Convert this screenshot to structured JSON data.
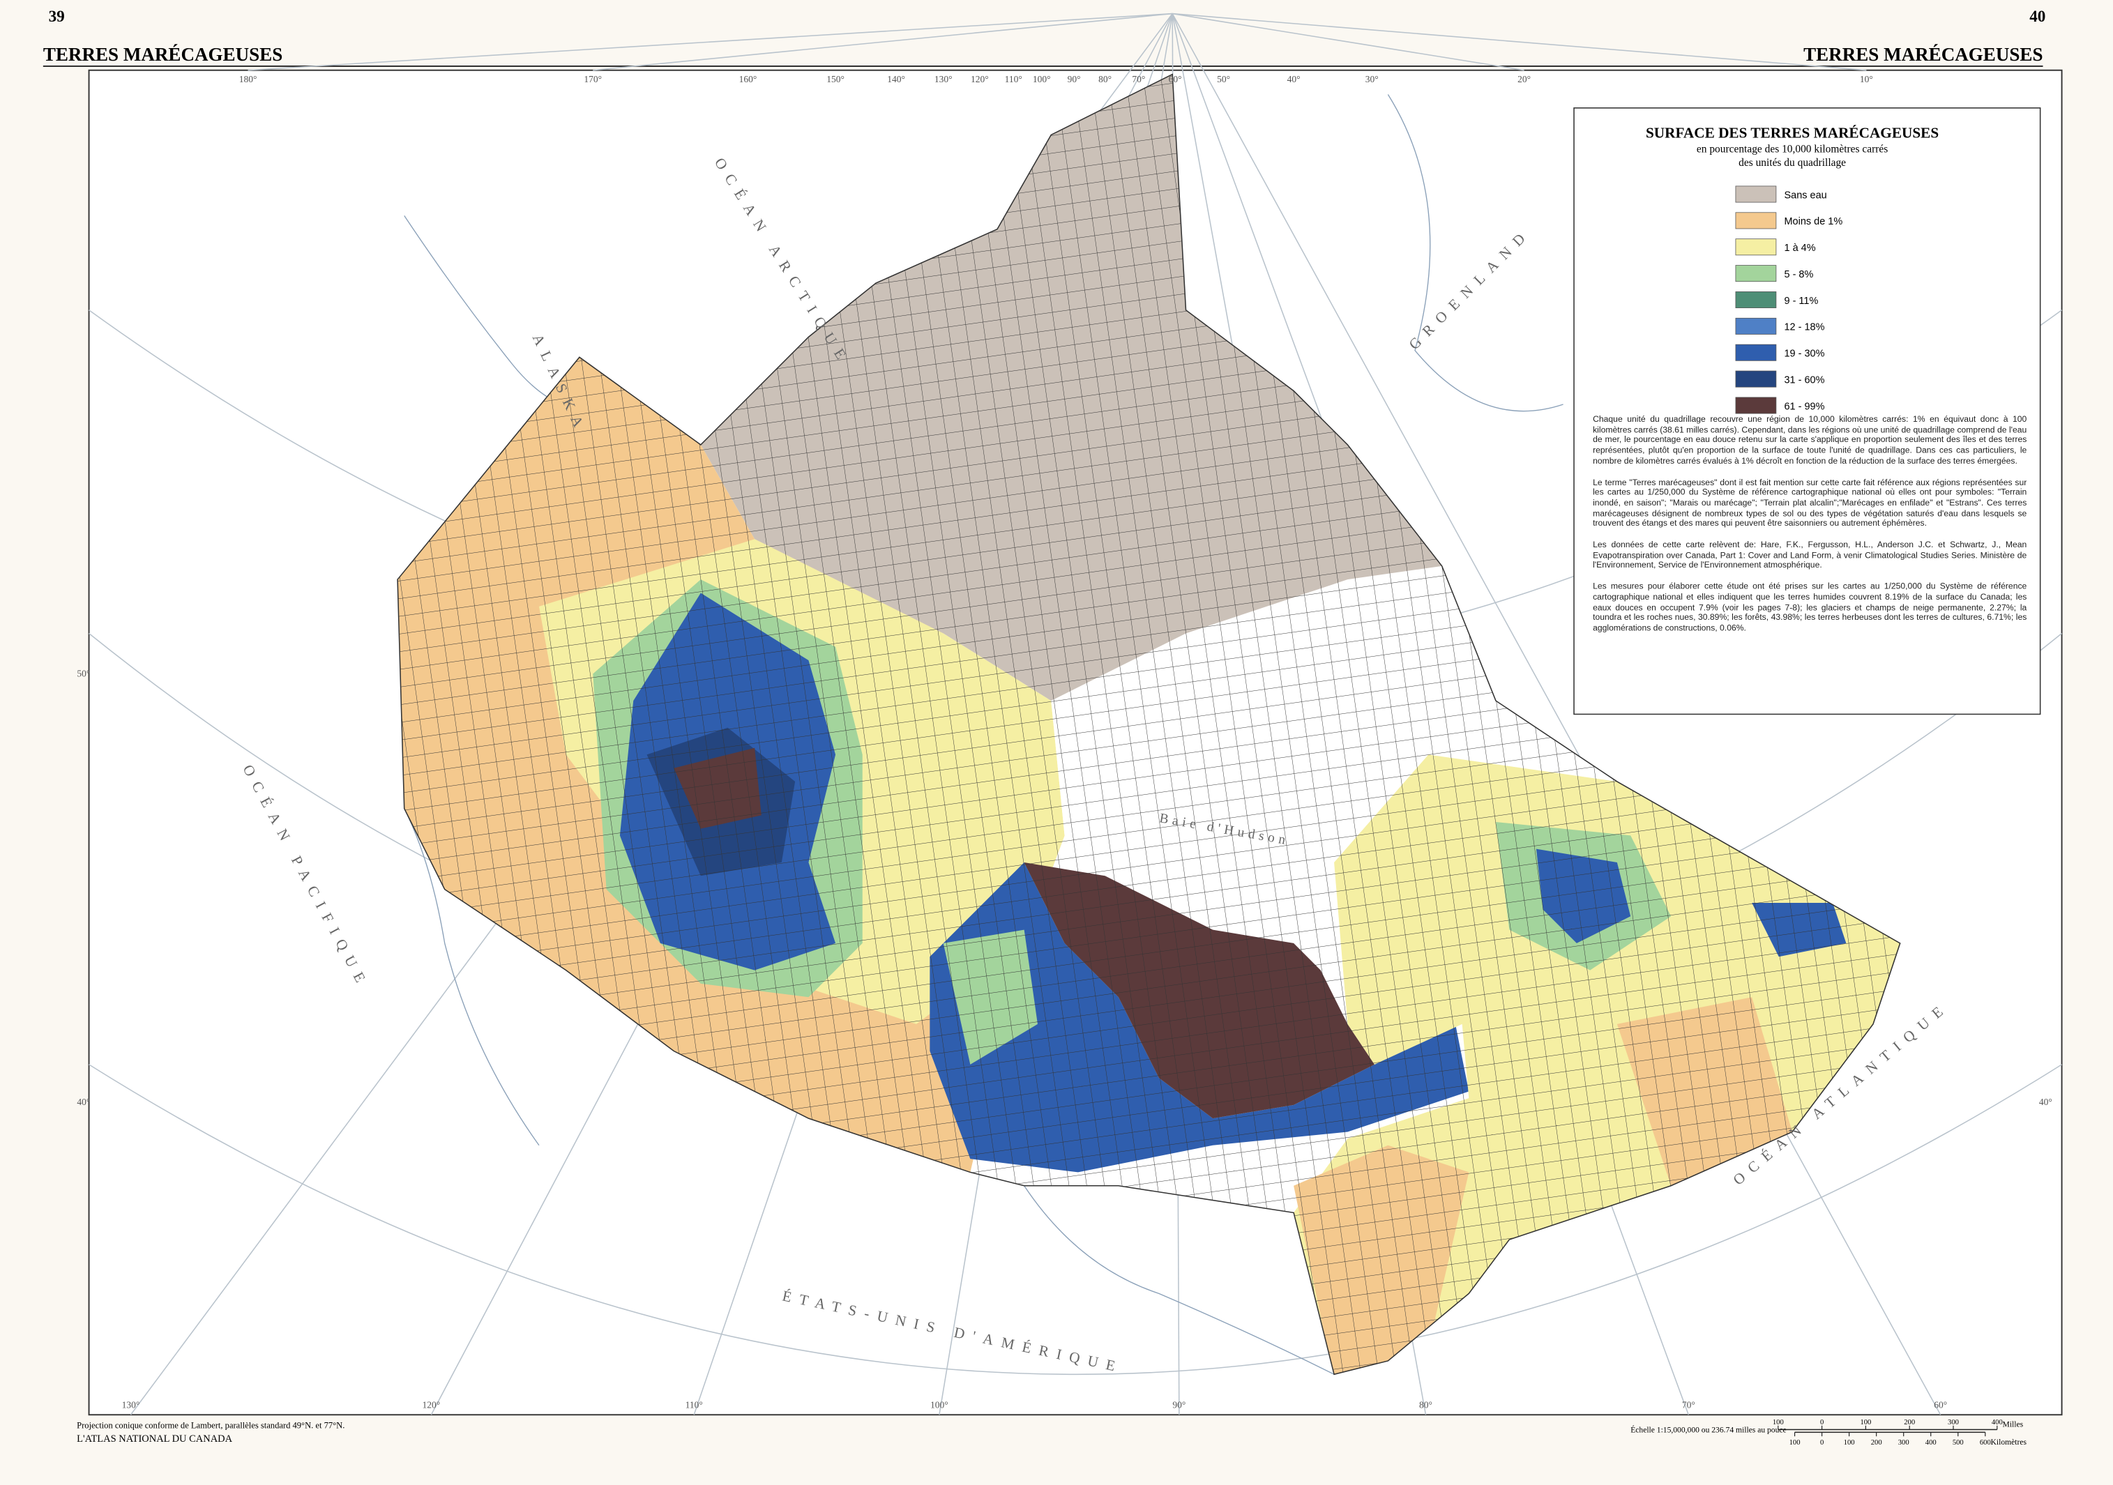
{
  "page": {
    "left_page_number": "39",
    "right_page_number": "40",
    "left_header": "TERRES MARÉCAGEUSES",
    "right_header": "TERRES MARÉCAGEUSES"
  },
  "legend": {
    "title": "SURFACE DES TERRES MARÉCAGEUSES",
    "subtitle_lines": [
      "en pourcentage des 10,000 kilomètres carrés",
      "des unités du quadrillage"
    ],
    "items": [
      {
        "label": "Sans eau",
        "color": "#cbc1b8"
      },
      {
        "label": "Moins de 1%",
        "color": "#f4c98e"
      },
      {
        "label": "1 à 4%",
        "color": "#f5efa3"
      },
      {
        "label": "5 - 8%",
        "color": "#a3d49c"
      },
      {
        "label": "9 - 11%",
        "color": "#4e8e76"
      },
      {
        "label": "12 - 18%",
        "color": "#4f80c6"
      },
      {
        "label": "19 - 30%",
        "color": "#2f5eae"
      },
      {
        "label": "31 - 60%",
        "color": "#24457f"
      },
      {
        "label": "61 - 99%",
        "color": "#5b3a3b"
      }
    ]
  },
  "notes": [
    "Chaque unité du quadrillage recouvre une région de 10,000 kilomètres carrés: 1% en équivaut donc à 100 kilomètres carrés (38.61 milles carrés). Cependant, dans les régions où une unité de quadrillage comprend de l'eau de mer, le pourcentage en eau douce retenu sur la carte s'applique en proportion seulement des îles et des terres représentées, plutôt qu'en proportion de la surface de toute l'unité de quadrillage. Dans ces cas particuliers, le nombre de kilomètres carrés évalués à 1% décroît en fonction de la réduction de la surface des terres émergées.",
    "Le terme \"Terres marécageuses\" dont il est fait mention sur cette carte fait référence aux régions représentées sur les cartes au 1/250,000 du Système de référence cartographique national où elles ont pour symboles: \"Terrain inondé, en saison\"; \"Marais ou marécage\"; \"Terrain plat alcalin\";\"Marécages en enfilade\" et \"Estrans\". Ces terres marécageuses désignent de nombreux types de sol ou des types de végétation saturés d'eau dans lesquels se trouvent des étangs et des mares qui peuvent être saisonniers ou autrement éphémères.",
    "Les données de cette carte relèvent de: Hare, F.K., Fergusson, H.L., Anderson J.C. et Schwartz, J., Mean Evapotranspiration over Canada, Part 1: Cover and Land Form, à venir Climatological Studies Series. Ministère de l'Environnement, Service de l'Environnement atmosphérique.",
    "Les mesures pour élaborer cette étude ont été prises sur les cartes au 1/250,000 du Système de référence cartographique national et elles indiquent que les terres humides couvrent 8.19% de la surface du Canada; les eaux douces en occupent 7.9% (voir les pages 7-8); les glaciers et champs de neige permanente, 2.27%; la toundra et les roches nues, 30.89%; les forêts, 43.98%; les terres herbeuses dont les terres de cultures, 6.71%; les agglomérations de constructions, 0.06%."
  ],
  "map_labels": {
    "longitudes_top": [
      "180°",
      "170°",
      "160°",
      "150°",
      "140°",
      "130°",
      "120°",
      "110°",
      "100°",
      "90°",
      "80°",
      "70°",
      "60°",
      "50°",
      "40°",
      "30°",
      "20°",
      "10°"
    ],
    "longitudes_bottom": [
      "130°",
      "120°",
      "110°",
      "100°",
      "90°",
      "80°",
      "70°",
      "60°"
    ],
    "latitudes": [
      "50°",
      "40°",
      "40°"
    ],
    "places": [
      "OCÉAN ARCTIQUE",
      "OCÉAN PACIFIQUE",
      "OCÉAN ATLANTIQUE",
      "GROENLAND",
      "ALASKA",
      "ÉTATS-UNIS D'AMÉRIQUE",
      "Baie d'Hudson"
    ]
  },
  "footer": {
    "projection": "Projection conique conforme de Lambert, parallèles standard 49°N. et 77°N.",
    "atlas": "L'ATLAS NATIONAL DU CANADA",
    "scale": "Échelle 1:15,000,000 ou 236.74 milles au pouce",
    "miles_label": "Milles",
    "km_label": "Kilomètres",
    "miles_ticks": [
      100,
      0,
      100,
      200,
      300,
      400
    ],
    "km_ticks": [
      100,
      0,
      100,
      200,
      300,
      400,
      500,
      600
    ]
  }
}
